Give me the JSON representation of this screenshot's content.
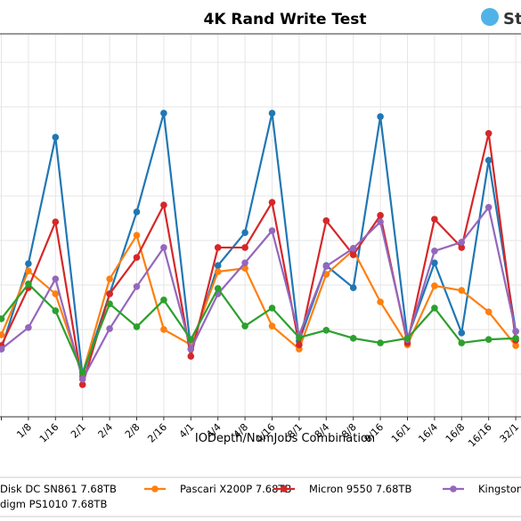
{
  "chart_data": {
    "type": "line",
    "title": "4K Rand Write Test",
    "logo_text": "St",
    "x_label": "IODepth/NumJobs Combination",
    "categories": [
      null,
      "1/8",
      "1/16",
      "2/1",
      "2/4",
      "2/8",
      "2/16",
      "4/1",
      "4/4",
      "4/8",
      "4/16",
      "8/1",
      "8/4",
      "8/8",
      "8/16",
      "16/1",
      "16/4",
      "16/8",
      "16/16",
      "32/1"
    ],
    "ylim": [
      0,
      100
    ],
    "grid": true,
    "series": [
      {
        "name": "Disk DC SN861 7.68TB",
        "color": "#1f77b4",
        "values": [
          17.7,
          40.0,
          73.0,
          10.7,
          32.1,
          53.5,
          79.3,
          17.7,
          39.5,
          48.1,
          79.3,
          19.8,
          39.5,
          33.7,
          78.4,
          20.5,
          40.2,
          21.9,
          67.0,
          22.3
        ]
      },
      {
        "name": "Pascari X200P 7.68TB",
        "color": "#ff7f0e",
        "values": [
          21.4,
          38.1,
          32.1,
          11.2,
          36.0,
          47.4,
          22.8,
          18.8,
          37.9,
          38.8,
          23.7,
          17.7,
          37.2,
          43.5,
          30.0,
          18.8,
          34.2,
          33.0,
          27.4,
          18.6
        ]
      },
      {
        "name": "Micron 9550 7.68TB",
        "color": "#d62728",
        "values": [
          18.6,
          33.7,
          50.9,
          8.4,
          32.1,
          41.6,
          55.3,
          15.8,
          44.2,
          44.2,
          56.0,
          18.8,
          51.2,
          42.3,
          52.6,
          19.3,
          51.6,
          44.2,
          74.0,
          20.0
        ]
      },
      {
        "name": "Kingston",
        "color": "#9467bd",
        "values": [
          17.7,
          23.3,
          36.0,
          9.8,
          23.0,
          34.0,
          44.2,
          17.7,
          32.1,
          40.2,
          48.6,
          21.4,
          39.3,
          44.0,
          50.9,
          20.2,
          43.3,
          45.6,
          54.7,
          22.3
        ]
      },
      {
        "name": "digm PS1010 7.68TB",
        "color": "#2ca02c",
        "values": [
          25.6,
          34.7,
          27.7,
          11.6,
          29.5,
          23.5,
          30.5,
          20.2,
          33.5,
          23.7,
          28.4,
          20.7,
          22.6,
          20.5,
          19.3,
          20.5,
          28.4,
          19.3,
          20.2,
          20.5
        ]
      }
    ]
  }
}
